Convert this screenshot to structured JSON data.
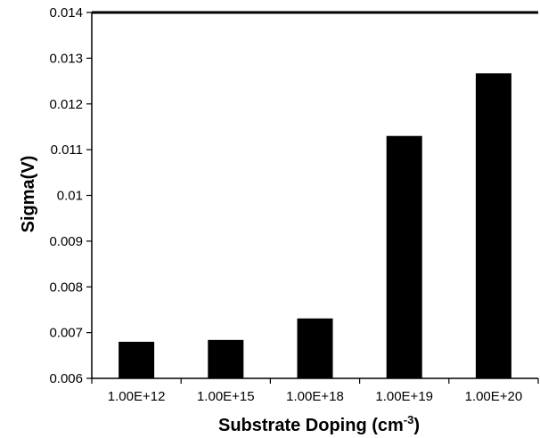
{
  "chart_data": {
    "type": "bar",
    "categories": [
      "1.00E+12",
      "1.00E+15",
      "1.00E+18",
      "1.00E+19",
      "1.00E+20"
    ],
    "values": [
      0.0068,
      0.00684,
      0.00731,
      0.0113,
      0.01267
    ],
    "title": "",
    "xlabel": "Substrate  Doping (cm",
    "xlabel_superscript": "-3",
    "xlabel_suffix": ")",
    "ylabel": "Sigma(V)",
    "ylim": [
      0.006,
      0.014
    ],
    "yticks": [
      "0.006",
      "0.007",
      "0.008",
      "0.009",
      "0.01",
      "0.011",
      "0.012",
      "0.013",
      "0.014"
    ],
    "grid": false,
    "legend": "none",
    "bar_color": "#000000"
  }
}
